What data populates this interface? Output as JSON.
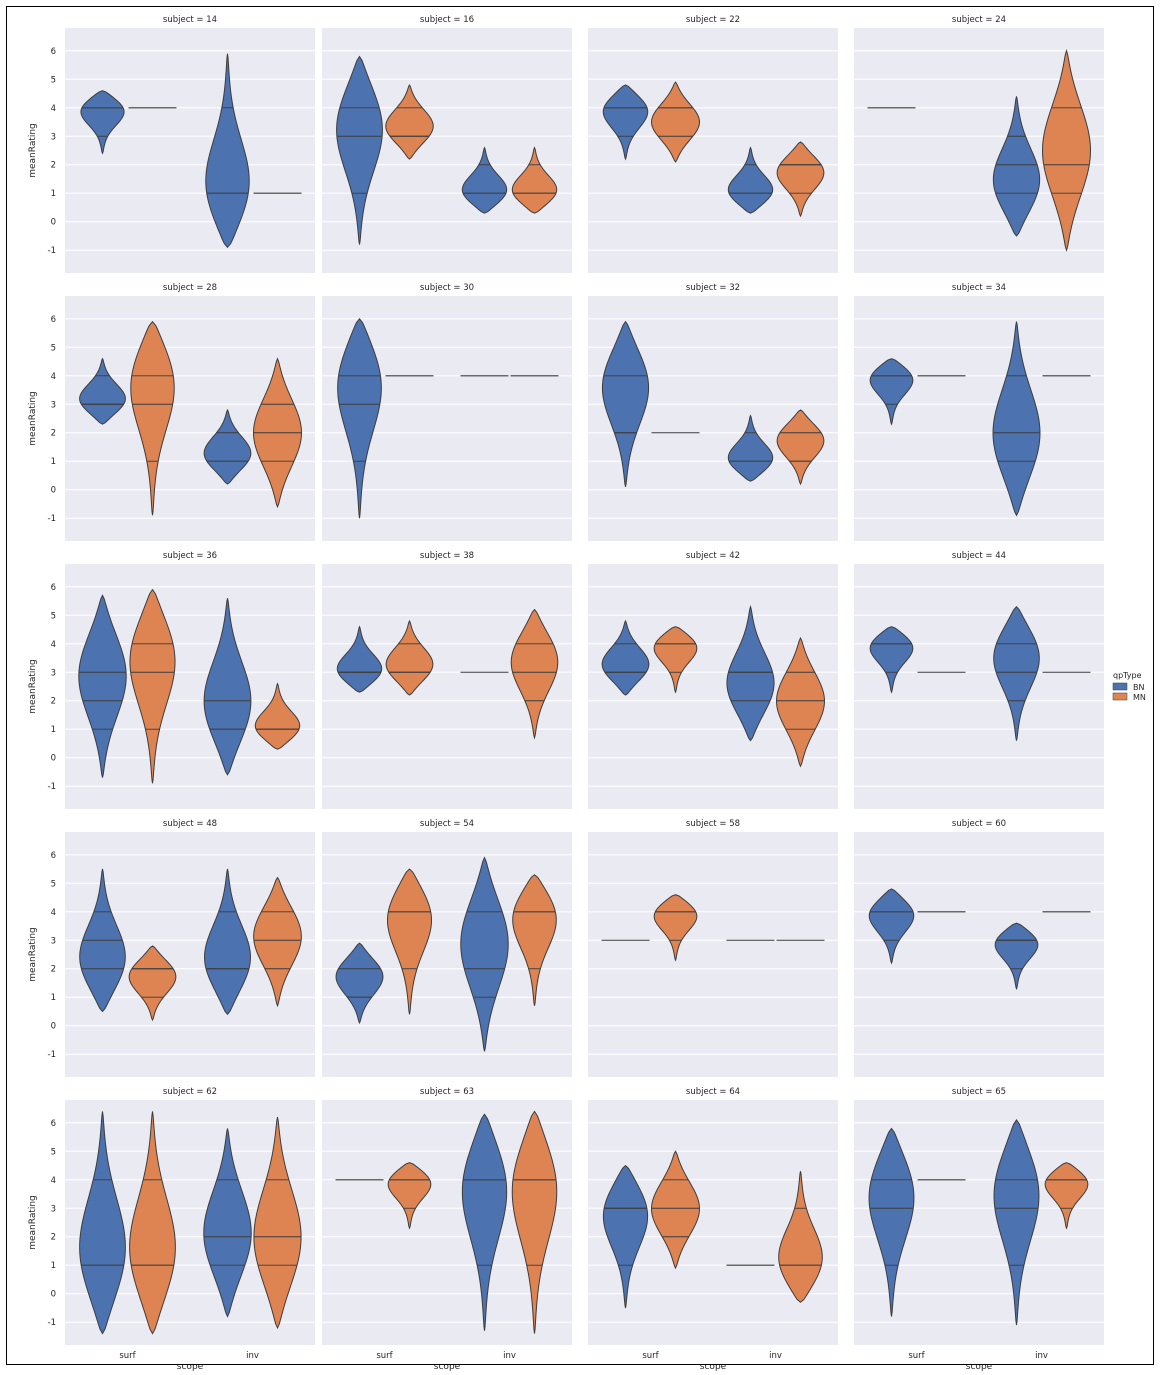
{
  "chart_data": {
    "type": "violin",
    "facet_label_prefix": "subject = ",
    "xlabel": "scope",
    "ylabel": "meanRating",
    "categories": [
      "surf",
      "inv"
    ],
    "hue": {
      "title": "qpType",
      "levels": [
        "BN",
        "MN"
      ]
    },
    "colors": {
      "BN": "#4c72b0",
      "MN": "#dd8452",
      "panel_bg": "#eaeaf2",
      "grid": "#ffffff",
      "edge": "#3d3d3d"
    },
    "ylim": [
      -1.8,
      6.8
    ],
    "yticks": [
      "-1",
      "0",
      "1",
      "2",
      "3",
      "4",
      "5",
      "6"
    ],
    "grid": true,
    "inner": "quartile",
    "legend_position": "right",
    "facets": [
      {
        "subject": "14",
        "violins": [
          {
            "scope": "surf",
            "hue": "BN",
            "min": 2.4,
            "max": 4.6,
            "quartiles": [
              3,
              4,
              4
            ],
            "mode": 4
          },
          {
            "scope": "surf",
            "hue": "MN",
            "constant": 4
          },
          {
            "scope": "inv",
            "hue": "BN",
            "min": -0.9,
            "max": 5.9,
            "quartiles": [
              1,
              1,
              4
            ],
            "mode": 1
          },
          {
            "scope": "inv",
            "hue": "MN",
            "constant": 1
          }
        ]
      },
      {
        "subject": "16",
        "violins": [
          {
            "scope": "surf",
            "hue": "BN",
            "min": -0.8,
            "max": 5.8,
            "quartiles": [
              1,
              3,
              4
            ],
            "mode": 3.5
          },
          {
            "scope": "surf",
            "hue": "MN",
            "min": 2.2,
            "max": 4.8,
            "quartiles": [
              3,
              3,
              4
            ],
            "mode": 3.3
          },
          {
            "scope": "inv",
            "hue": "BN",
            "min": 0.3,
            "max": 2.6,
            "quartiles": [
              1,
              1,
              2
            ],
            "mode": 1
          },
          {
            "scope": "inv",
            "hue": "MN",
            "min": 0.3,
            "max": 2.6,
            "quartiles": [
              1,
              1,
              2
            ],
            "mode": 1
          }
        ]
      },
      {
        "subject": "22",
        "violins": [
          {
            "scope": "surf",
            "hue": "BN",
            "min": 2.2,
            "max": 4.8,
            "quartiles": [
              3,
              4,
              4
            ],
            "mode": 4
          },
          {
            "scope": "surf",
            "hue": "MN",
            "min": 2.1,
            "max": 4.9,
            "quartiles": [
              3,
              4,
              4
            ],
            "mode": 3.5
          },
          {
            "scope": "inv",
            "hue": "BN",
            "min": 0.3,
            "max": 2.6,
            "quartiles": [
              1,
              1,
              2
            ],
            "mode": 1
          },
          {
            "scope": "inv",
            "hue": "MN",
            "min": 0.2,
            "max": 2.8,
            "quartiles": [
              1,
              2,
              2
            ],
            "mode": 1.8
          }
        ]
      },
      {
        "subject": "24",
        "violins": [
          {
            "scope": "surf",
            "hue": "BN",
            "constant": 4
          },
          {
            "scope": "inv",
            "hue": "BN",
            "min": -0.5,
            "max": 4.4,
            "quartiles": [
              1,
              2,
              3
            ],
            "mode": 1.3
          },
          {
            "scope": "inv",
            "hue": "MN",
            "min": -1,
            "max": 6,
            "quartiles": [
              1,
              2,
              4
            ],
            "mode": 2.5
          }
        ]
      },
      {
        "subject": "28",
        "violins": [
          {
            "scope": "surf",
            "hue": "BN",
            "min": 2.3,
            "max": 4.6,
            "quartiles": [
              3,
              3,
              4
            ],
            "mode": 3.1
          },
          {
            "scope": "surf",
            "hue": "MN",
            "min": -0.9,
            "max": 5.9,
            "quartiles": [
              1,
              3,
              4
            ],
            "mode": 4
          },
          {
            "scope": "inv",
            "hue": "BN",
            "min": 0.2,
            "max": 2.8,
            "quartiles": [
              1,
              1,
              2
            ],
            "mode": 1.2
          },
          {
            "scope": "inv",
            "hue": "MN",
            "min": -0.6,
            "max": 4.6,
            "quartiles": [
              1,
              2,
              3
            ],
            "mode": 2
          }
        ]
      },
      {
        "subject": "30",
        "violins": [
          {
            "scope": "surf",
            "hue": "BN",
            "min": -1,
            "max": 6,
            "quartiles": [
              1,
              3,
              4
            ],
            "mode": 4
          },
          {
            "scope": "surf",
            "hue": "MN",
            "constant": 4
          },
          {
            "scope": "inv",
            "hue": "BN",
            "constant": 4
          },
          {
            "scope": "inv",
            "hue": "MN",
            "constant": 4
          }
        ]
      },
      {
        "subject": "32",
        "violins": [
          {
            "scope": "surf",
            "hue": "BN",
            "min": 0.1,
            "max": 5.9,
            "quartiles": [
              2,
              2,
              4
            ],
            "mode": 3.8
          },
          {
            "scope": "surf",
            "hue": "MN",
            "constant": 2
          },
          {
            "scope": "inv",
            "hue": "BN",
            "min": 0.3,
            "max": 2.6,
            "quartiles": [
              1,
              1,
              2
            ],
            "mode": 1
          },
          {
            "scope": "inv",
            "hue": "MN",
            "min": 0.2,
            "max": 2.8,
            "quartiles": [
              1,
              1,
              2
            ],
            "mode": 1.8
          }
        ]
      },
      {
        "subject": "34",
        "violins": [
          {
            "scope": "surf",
            "hue": "BN",
            "min": 2.3,
            "max": 4.6,
            "quartiles": [
              3,
              4,
              4
            ],
            "mode": 4
          },
          {
            "scope": "surf",
            "hue": "MN",
            "constant": 4
          },
          {
            "scope": "inv",
            "hue": "BN",
            "min": -0.9,
            "max": 5.9,
            "quartiles": [
              1,
              2,
              4
            ],
            "mode": 1.8
          },
          {
            "scope": "inv",
            "hue": "MN",
            "constant": 4
          }
        ]
      },
      {
        "subject": "36",
        "violins": [
          {
            "scope": "surf",
            "hue": "BN",
            "min": -0.7,
            "max": 5.7,
            "quartiles": [
              1,
              2,
              3
            ],
            "mode": 3
          },
          {
            "scope": "surf",
            "hue": "MN",
            "min": -0.9,
            "max": 5.9,
            "quartiles": [
              1,
              3,
              4
            ],
            "mode": 3.7
          },
          {
            "scope": "inv",
            "hue": "BN",
            "min": -0.6,
            "max": 5.6,
            "quartiles": [
              1,
              1,
              2
            ],
            "mode": 1.8
          },
          {
            "scope": "inv",
            "hue": "MN",
            "min": 0.3,
            "max": 2.6,
            "quartiles": [
              1,
              1,
              1
            ],
            "mode": 1
          }
        ]
      },
      {
        "subject": "38",
        "violins": [
          {
            "scope": "surf",
            "hue": "BN",
            "min": 2.3,
            "max": 4.6,
            "quartiles": [
              3,
              3,
              3
            ],
            "mode": 3
          },
          {
            "scope": "surf",
            "hue": "MN",
            "min": 2.2,
            "max": 4.8,
            "quartiles": [
              3,
              3,
              4
            ],
            "mode": 3.2
          },
          {
            "scope": "inv",
            "hue": "BN",
            "constant": 3
          },
          {
            "scope": "inv",
            "hue": "MN",
            "min": 0.7,
            "max": 5.2,
            "quartiles": [
              2,
              3,
              4
            ],
            "mode": 3.5
          }
        ]
      },
      {
        "subject": "42",
        "violins": [
          {
            "scope": "surf",
            "hue": "BN",
            "min": 2.2,
            "max": 4.8,
            "quartiles": [
              3,
              3,
              4
            ],
            "mode": 3.2
          },
          {
            "scope": "surf",
            "hue": "MN",
            "min": 2.3,
            "max": 4.6,
            "quartiles": [
              3,
              4,
              4
            ],
            "mode": 4
          },
          {
            "scope": "inv",
            "hue": "BN",
            "min": 0.6,
            "max": 5.3,
            "quartiles": [
              2,
              3,
              3
            ],
            "mode": 2.5
          },
          {
            "scope": "inv",
            "hue": "MN",
            "min": -0.3,
            "max": 4.2,
            "quartiles": [
              1,
              2,
              3
            ],
            "mode": 2
          }
        ]
      },
      {
        "subject": "44",
        "violins": [
          {
            "scope": "surf",
            "hue": "BN",
            "min": 2.3,
            "max": 4.6,
            "quartiles": [
              3,
              4,
              4
            ],
            "mode": 4
          },
          {
            "scope": "surf",
            "hue": "MN",
            "constant": 3
          },
          {
            "scope": "inv",
            "hue": "BN",
            "min": 0.6,
            "max": 5.3,
            "quartiles": [
              2,
              3,
              4
            ],
            "mode": 3.7
          },
          {
            "scope": "inv",
            "hue": "MN",
            "constant": 3
          }
        ]
      },
      {
        "subject": "48",
        "violins": [
          {
            "scope": "surf",
            "hue": "BN",
            "min": 0.5,
            "max": 5.5,
            "quartiles": [
              2,
              3,
              4
            ],
            "mode": 2.2
          },
          {
            "scope": "surf",
            "hue": "MN",
            "min": 0.2,
            "max": 2.8,
            "quartiles": [
              1,
              2,
              2
            ],
            "mode": 1.8
          },
          {
            "scope": "inv",
            "hue": "BN",
            "min": 0.4,
            "max": 5.5,
            "quartiles": [
              2,
              2,
              4
            ],
            "mode": 2.2
          },
          {
            "scope": "inv",
            "hue": "MN",
            "min": 0.7,
            "max": 5.2,
            "quartiles": [
              2,
              3,
              4
            ],
            "mode": 3.2
          }
        ]
      },
      {
        "subject": "54",
        "violins": [
          {
            "scope": "surf",
            "hue": "BN",
            "min": 0.1,
            "max": 2.9,
            "quartiles": [
              1,
              1,
              2
            ],
            "mode": 1.8
          },
          {
            "scope": "surf",
            "hue": "MN",
            "min": 0.4,
            "max": 5.5,
            "quartiles": [
              2,
              4,
              4
            ],
            "mode": 4
          },
          {
            "scope": "inv",
            "hue": "BN",
            "min": -0.9,
            "max": 5.9,
            "quartiles": [
              1,
              2,
              4
            ],
            "mode": 3
          },
          {
            "scope": "inv",
            "hue": "MN",
            "min": 0.7,
            "max": 5.3,
            "quartiles": [
              2,
              4,
              4
            ],
            "mode": 4
          }
        ]
      },
      {
        "subject": "58",
        "violins": [
          {
            "scope": "surf",
            "hue": "BN",
            "constant": 3
          },
          {
            "scope": "surf",
            "hue": "MN",
            "min": 2.3,
            "max": 4.6,
            "quartiles": [
              3,
              4,
              4
            ],
            "mode": 4
          },
          {
            "scope": "inv",
            "hue": "BN",
            "constant": 3
          },
          {
            "scope": "inv",
            "hue": "MN",
            "constant": 3
          }
        ]
      },
      {
        "subject": "60",
        "violins": [
          {
            "scope": "surf",
            "hue": "BN",
            "min": 2.2,
            "max": 4.8,
            "quartiles": [
              3,
              4,
              4
            ],
            "mode": 4
          },
          {
            "scope": "surf",
            "hue": "MN",
            "constant": 4
          },
          {
            "scope": "inv",
            "hue": "BN",
            "min": 1.3,
            "max": 3.6,
            "quartiles": [
              2,
              3,
              3
            ],
            "mode": 3
          },
          {
            "scope": "inv",
            "hue": "MN",
            "constant": 4
          }
        ]
      },
      {
        "subject": "62",
        "violins": [
          {
            "scope": "surf",
            "hue": "BN",
            "min": -1.4,
            "max": 6.4,
            "quartiles": [
              1,
              1,
              4
            ],
            "mode": 1.3
          },
          {
            "scope": "surf",
            "hue": "MN",
            "min": -1.4,
            "max": 6.4,
            "quartiles": [
              1,
              1,
              4
            ],
            "mode": 1.3
          },
          {
            "scope": "inv",
            "hue": "BN",
            "min": -0.8,
            "max": 5.8,
            "quartiles": [
              1,
              2,
              4
            ],
            "mode": 2
          },
          {
            "scope": "inv",
            "hue": "MN",
            "min": -1.2,
            "max": 6.2,
            "quartiles": [
              1,
              2,
              4
            ],
            "mode": 1.8
          }
        ]
      },
      {
        "subject": "63",
        "violins": [
          {
            "scope": "surf",
            "hue": "BN",
            "constant": 4
          },
          {
            "scope": "surf",
            "hue": "MN",
            "min": 2.3,
            "max": 4.6,
            "quartiles": [
              3,
              4,
              4
            ],
            "mode": 4
          },
          {
            "scope": "inv",
            "hue": "BN",
            "min": -1.3,
            "max": 6.3,
            "quartiles": [
              1,
              4,
              4
            ],
            "mode": 4
          },
          {
            "scope": "inv",
            "hue": "MN",
            "min": -1.4,
            "max": 6.4,
            "quartiles": [
              1,
              4,
              4
            ],
            "mode": 4
          }
        ]
      },
      {
        "subject": "64",
        "violins": [
          {
            "scope": "surf",
            "hue": "BN",
            "min": -0.5,
            "max": 4.5,
            "quartiles": [
              1,
              3,
              3
            ],
            "mode": 3
          },
          {
            "scope": "surf",
            "hue": "MN",
            "min": 0.9,
            "max": 5,
            "quartiles": [
              2,
              3,
              4
            ],
            "mode": 3
          },
          {
            "scope": "inv",
            "hue": "BN",
            "constant": 1
          },
          {
            "scope": "inv",
            "hue": "MN",
            "min": -0.3,
            "max": 4.3,
            "quartiles": [
              1,
              1,
              3
            ],
            "mode": 1
          }
        ]
      },
      {
        "subject": "65",
        "violins": [
          {
            "scope": "surf",
            "hue": "BN",
            "min": -0.8,
            "max": 5.8,
            "quartiles": [
              1,
              3,
              4
            ],
            "mode": 3.7
          },
          {
            "scope": "surf",
            "hue": "MN",
            "constant": 4
          },
          {
            "scope": "inv",
            "hue": "BN",
            "min": -1.1,
            "max": 6.1,
            "quartiles": [
              1,
              3,
              4
            ],
            "mode": 3.8
          },
          {
            "scope": "inv",
            "hue": "MN",
            "min": 2.3,
            "max": 4.6,
            "quartiles": [
              3,
              4,
              4
            ],
            "mode": 4
          }
        ]
      }
    ]
  }
}
